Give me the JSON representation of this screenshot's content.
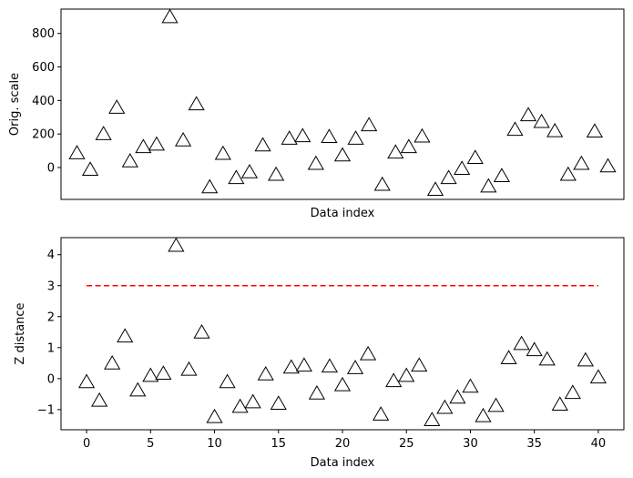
{
  "colors": {
    "marker_edge": "#000000",
    "marker_fill": "#ffffff",
    "threshold_line": "#ff0000",
    "axes": "#000000",
    "background": "#ffffff"
  },
  "chart_data": [
    {
      "type": "scatter",
      "marker": "triangle-up",
      "xlabel": "Data index",
      "ylabel": "Orig. scale",
      "xlim": [
        -1.2,
        41.2
      ],
      "ylim": [
        -190,
        945
      ],
      "xticks_visible": false,
      "yticks": [
        0,
        200,
        400,
        600,
        800
      ],
      "ytick_labels": [
        "0",
        "200",
        "400",
        "600",
        "800"
      ],
      "grid": false,
      "x": [
        0,
        1,
        2,
        3,
        4,
        5,
        6,
        7,
        8,
        9,
        10,
        11,
        12,
        13,
        14,
        15,
        16,
        17,
        18,
        19,
        20,
        21,
        22,
        23,
        24,
        25,
        26,
        27,
        28,
        29,
        30,
        31,
        32,
        33,
        34,
        35,
        36,
        37,
        38,
        39,
        40
      ],
      "y": [
        78,
        -20,
        192,
        350,
        30,
        115,
        130,
        890,
        155,
        370,
        -125,
        75,
        -70,
        -35,
        125,
        -50,
        165,
        180,
        15,
        175,
        65,
        165,
        245,
        -110,
        82,
        115,
        178,
        -140,
        -70,
        -15,
        50,
        -120,
        -58,
        218,
        305,
        265,
        210,
        -50,
        15,
        208,
        0
      ]
    },
    {
      "type": "scatter",
      "marker": "triangle-up",
      "xlabel": "Data index",
      "ylabel": "Z distance",
      "xlim": [
        -2.0,
        42.0
      ],
      "ylim": [
        -1.65,
        4.55
      ],
      "xticks": [
        0,
        5,
        10,
        15,
        20,
        25,
        30,
        35,
        40
      ],
      "xtick_labels": [
        "0",
        "5",
        "10",
        "15",
        "20",
        "25",
        "30",
        "35",
        "40"
      ],
      "yticks": [
        -1,
        0,
        1,
        2,
        3,
        4
      ],
      "ytick_labels": [
        "−1",
        "0",
        "1",
        "2",
        "3",
        "4"
      ],
      "grid": false,
      "x": [
        0,
        1,
        2,
        3,
        4,
        5,
        6,
        7,
        8,
        9,
        10,
        11,
        12,
        13,
        14,
        15,
        16,
        17,
        18,
        19,
        20,
        21,
        22,
        23,
        24,
        25,
        26,
        27,
        28,
        29,
        30,
        31,
        32,
        33,
        34,
        35,
        36,
        37,
        38,
        39,
        40
      ],
      "y": [
        -0.15,
        -0.75,
        0.45,
        1.32,
        -0.42,
        0.05,
        0.12,
        4.25,
        0.25,
        1.45,
        -1.28,
        -0.15,
        -0.95,
        -0.8,
        0.1,
        -0.85,
        0.32,
        0.38,
        -0.52,
        0.35,
        -0.25,
        0.3,
        0.75,
        -1.2,
        -0.12,
        0.05,
        0.38,
        -1.38,
        -0.98,
        -0.65,
        -0.3,
        -1.25,
        -0.92,
        0.62,
        1.08,
        0.88,
        0.58,
        -0.88,
        -0.5,
        0.55,
        0
      ],
      "threshold": {
        "y": 3,
        "x_start": 0,
        "x_end": 40,
        "style": "dashed"
      }
    }
  ]
}
